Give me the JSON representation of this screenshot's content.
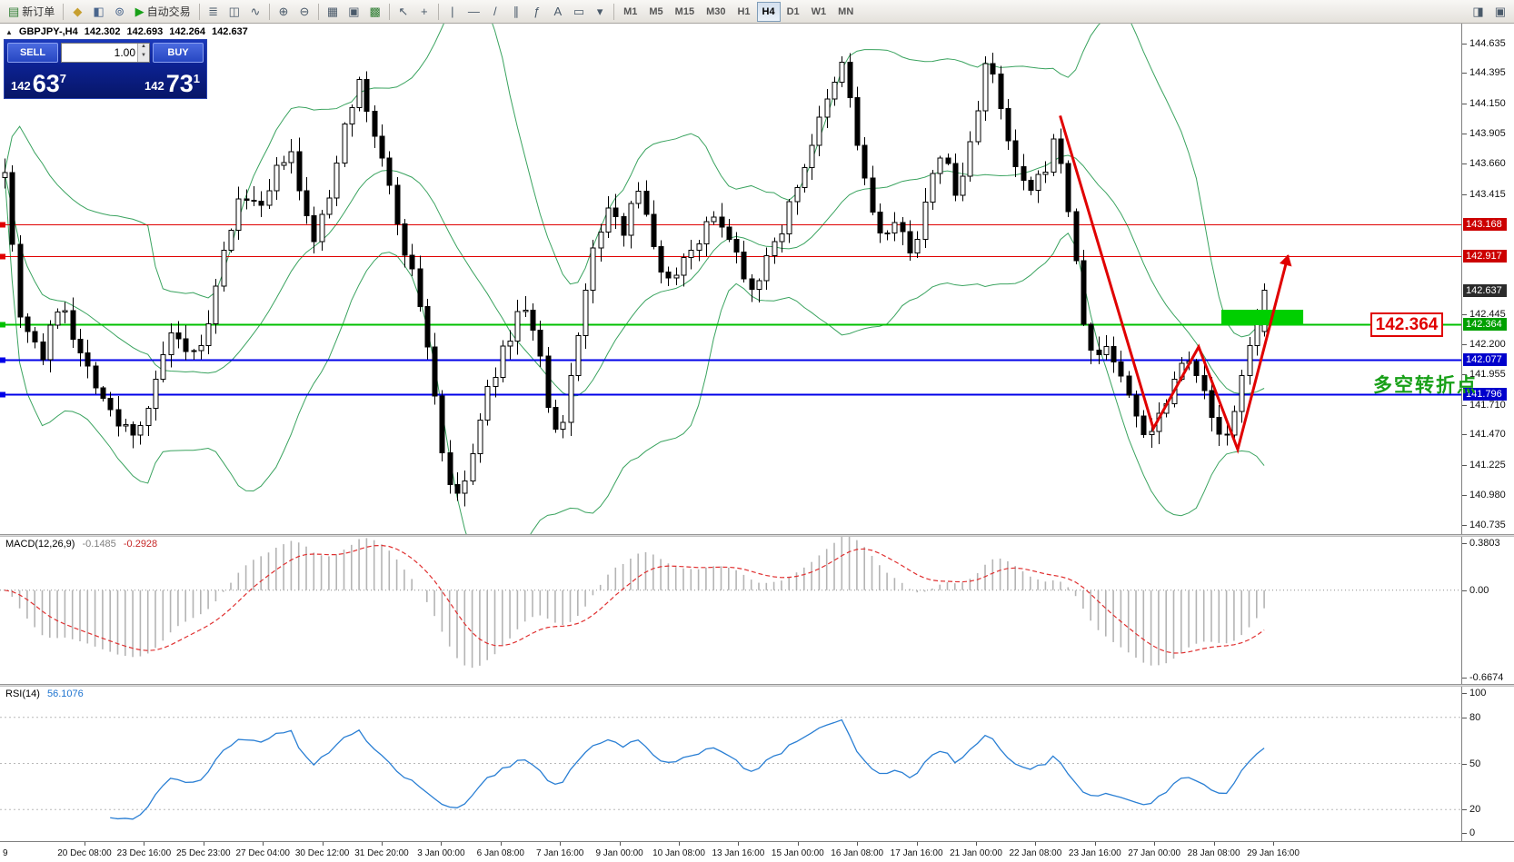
{
  "toolbar": {
    "groups": [
      [
        {
          "name": "new-order",
          "glyph": "▤",
          "glyph_color": "#2e7d32",
          "label": "新订单"
        }
      ],
      [
        {
          "name": "alerts",
          "glyph": "◆",
          "glyph_color": "#c79f2f"
        },
        {
          "name": "depth-of-market",
          "glyph": "◧",
          "glyph_color": "#49658c"
        },
        {
          "name": "news",
          "glyph": "⊚",
          "glyph_color": "#49658c"
        },
        {
          "name": "auto-trading",
          "glyph": "▶",
          "glyph_color": "#18a018",
          "label": "自动交易"
        }
      ],
      [
        {
          "name": "bar-chart",
          "glyph": "≣"
        },
        {
          "name": "candlestick-chart",
          "glyph": "◫"
        },
        {
          "name": "line-chart",
          "glyph": "∿"
        }
      ],
      [
        {
          "name": "zoom-in",
          "glyph": "⊕"
        },
        {
          "name": "zoom-out",
          "glyph": "⊖"
        }
      ],
      [
        {
          "name": "tile-windows",
          "glyph": "▦"
        },
        {
          "name": "arrange-windows",
          "glyph": "▣"
        },
        {
          "name": "indicators",
          "glyph": "▩",
          "glyph_color": "#2e7d32"
        }
      ],
      [
        {
          "name": "cursor",
          "glyph": "↖"
        },
        {
          "name": "crosshair",
          "glyph": "+"
        }
      ],
      [
        {
          "name": "vertical-line",
          "glyph": "|"
        },
        {
          "name": "horizontal-line",
          "glyph": "―"
        },
        {
          "name": "trendline",
          "glyph": "/"
        },
        {
          "name": "equidistant-channel",
          "glyph": "∥"
        },
        {
          "name": "fibonacci",
          "glyph": "ƒ"
        },
        {
          "name": "text",
          "glyph": "A"
        },
        {
          "name": "text-label",
          "glyph": "▭"
        },
        {
          "name": "arrows-dropdown",
          "glyph": "▾"
        }
      ],
      [
        {
          "name": "tf-m1",
          "label": "M1",
          "tf": true
        },
        {
          "name": "tf-m5",
          "label": "M5",
          "tf": true
        },
        {
          "name": "tf-m15",
          "label": "M15",
          "tf": true
        },
        {
          "name": "tf-m30",
          "label": "M30",
          "tf": true
        },
        {
          "name": "tf-h1",
          "label": "H1",
          "tf": true
        },
        {
          "name": "tf-h4",
          "label": "H4",
          "tf": true,
          "active": true
        },
        {
          "name": "tf-d1",
          "label": "D1",
          "tf": true
        },
        {
          "name": "tf-w1",
          "label": "W1",
          "tf": true
        },
        {
          "name": "tf-mn",
          "label": "MN",
          "tf": true
        }
      ]
    ],
    "right_icons": [
      {
        "name": "chart-window",
        "glyph": "◨"
      },
      {
        "name": "full-screen",
        "glyph": "▣"
      }
    ]
  },
  "chart": {
    "header": {
      "collapse_icon": "▲",
      "symbol_tf": "GBPJPY-,H4",
      "open": "142.302",
      "high": "142.693",
      "low": "142.264",
      "close": "142.637"
    },
    "order_panel": {
      "sell_label": "SELL",
      "buy_label": "BUY",
      "volume": "1.00",
      "spinner_up": "▲",
      "spinner_down": "▼",
      "sell_price_main": "142",
      "sell_price_big": "63",
      "sell_price_sup": "7",
      "buy_price_main": "142",
      "buy_price_big": "73",
      "buy_price_sup": "1"
    },
    "annotation": {
      "text": "多空转折点",
      "color": "#18a018"
    },
    "price_box": {
      "text": "142.364",
      "color": "#e00000"
    },
    "y_axis": {
      "ticks": [
        "144.635",
        "144.395",
        "144.150",
        "143.905",
        "143.660",
        "143.415",
        "142.445",
        "142.200",
        "141.955",
        "141.710",
        "141.470",
        "141.225",
        "140.980",
        "140.735"
      ],
      "tags": [
        {
          "value": "143.168",
          "style": "red"
        },
        {
          "value": "142.917",
          "style": "red"
        },
        {
          "value": "142.637",
          "style": "current"
        },
        {
          "value": "142.364",
          "style": "green"
        },
        {
          "value": "142.077",
          "style": "blue"
        },
        {
          "value": "141.796",
          "style": "blue"
        }
      ]
    },
    "x_axis": {
      "labels": [
        "9",
        "20 Dec 08:00",
        "23 Dec 16:00",
        "25 Dec 23:00",
        "27 Dec 04:00",
        "30 Dec 12:00",
        "31 Dec 20:00",
        "3 Jan 00:00",
        "6 Jan 08:00",
        "7 Jan 16:00",
        "9 Jan 00:00",
        "10 Jan 08:00",
        "13 Jan 16:00",
        "15 Jan 00:00",
        "16 Jan 08:00",
        "17 Jan 16:00",
        "21 Jan 00:00",
        "22 Jan 08:00",
        "23 Jan 16:00",
        "27 Jan 00:00",
        "28 Jan 08:00",
        "29 Jan 16:00"
      ]
    }
  },
  "macd_panel": {
    "name": "MACD(12,26,9)",
    "value_main": "-0.1485",
    "value_signal": "-0.2928",
    "axis_labels": [
      "0.3803",
      "0.00",
      "-0.6674"
    ]
  },
  "rsi_panel": {
    "name": "RSI(14)",
    "value": "56.1076",
    "axis_labels": [
      "100",
      "80",
      "50",
      "20",
      "0"
    ]
  },
  "chart_data": {
    "type": "candlestick",
    "symbol": "GBPJPY",
    "timeframe": "H4",
    "current_bar": {
      "open": 142.302,
      "high": 142.693,
      "low": 142.264,
      "close": 142.637
    },
    "price_top": 144.795,
    "price_bottom": 140.665,
    "candle_count": 168,
    "seed": 7,
    "path_anchors": [
      [
        0.0,
        143.65
      ],
      [
        0.005,
        143.1
      ],
      [
        0.012,
        142.45
      ],
      [
        0.03,
        142.1
      ],
      [
        0.045,
        142.6
      ],
      [
        0.058,
        142.15
      ],
      [
        0.072,
        141.9
      ],
      [
        0.088,
        141.55
      ],
      [
        0.105,
        141.5
      ],
      [
        0.118,
        141.8
      ],
      [
        0.131,
        142.3
      ],
      [
        0.146,
        142.05
      ],
      [
        0.161,
        142.3
      ],
      [
        0.176,
        143.05
      ],
      [
        0.19,
        143.45
      ],
      [
        0.203,
        143.25
      ],
      [
        0.216,
        143.6
      ],
      [
        0.226,
        143.8
      ],
      [
        0.236,
        143.3
      ],
      [
        0.246,
        143.05
      ],
      [
        0.258,
        143.4
      ],
      [
        0.27,
        144.05
      ],
      [
        0.281,
        144.3
      ],
      [
        0.292,
        143.95
      ],
      [
        0.303,
        143.55
      ],
      [
        0.315,
        143.05
      ],
      [
        0.327,
        142.65
      ],
      [
        0.338,
        142.05
      ],
      [
        0.349,
        141.2
      ],
      [
        0.36,
        140.92
      ],
      [
        0.371,
        141.3
      ],
      [
        0.384,
        141.85
      ],
      [
        0.398,
        142.2
      ],
      [
        0.412,
        142.55
      ],
      [
        0.424,
        142.15
      ],
      [
        0.433,
        141.55
      ],
      [
        0.441,
        141.4
      ],
      [
        0.453,
        142.2
      ],
      [
        0.466,
        142.9
      ],
      [
        0.478,
        143.3
      ],
      [
        0.49,
        143.1
      ],
      [
        0.501,
        143.55
      ],
      [
        0.513,
        143.05
      ],
      [
        0.526,
        142.7
      ],
      [
        0.539,
        142.9
      ],
      [
        0.553,
        143.1
      ],
      [
        0.566,
        143.25
      ],
      [
        0.579,
        143.0
      ],
      [
        0.591,
        142.65
      ],
      [
        0.604,
        142.85
      ],
      [
        0.617,
        143.15
      ],
      [
        0.631,
        143.55
      ],
      [
        0.645,
        143.95
      ],
      [
        0.657,
        144.25
      ],
      [
        0.666,
        144.5
      ],
      [
        0.676,
        143.85
      ],
      [
        0.685,
        143.4
      ],
      [
        0.696,
        143.05
      ],
      [
        0.709,
        143.15
      ],
      [
        0.721,
        142.95
      ],
      [
        0.733,
        143.4
      ],
      [
        0.744,
        143.8
      ],
      [
        0.756,
        143.35
      ],
      [
        0.769,
        143.95
      ],
      [
        0.78,
        144.55
      ],
      [
        0.791,
        144.05
      ],
      [
        0.801,
        143.65
      ],
      [
        0.812,
        143.4
      ],
      [
        0.823,
        143.55
      ],
      [
        0.835,
        143.9
      ],
      [
        0.845,
        143.25
      ],
      [
        0.855,
        142.45
      ],
      [
        0.864,
        142.05
      ],
      [
        0.874,
        142.2
      ],
      [
        0.884,
        142.0
      ],
      [
        0.895,
        141.7
      ],
      [
        0.907,
        141.45
      ],
      [
        0.917,
        141.65
      ],
      [
        0.929,
        141.95
      ],
      [
        0.939,
        142.15
      ],
      [
        0.949,
        141.9
      ],
      [
        0.959,
        141.55
      ],
      [
        0.971,
        141.42
      ],
      [
        0.98,
        141.8
      ],
      [
        0.99,
        142.35
      ],
      [
        1.0,
        142.62
      ]
    ],
    "hlines": [
      {
        "price": 143.168,
        "color": "#e00000",
        "width": 1
      },
      {
        "price": 142.917,
        "color": "#e00000",
        "width": 1
      },
      {
        "price": 142.364,
        "color": "#00c000",
        "width": 2
      },
      {
        "price": 142.077,
        "color": "#0000e8",
        "width": 2
      },
      {
        "price": 141.796,
        "color": "#0000e8",
        "width": 2
      }
    ],
    "bollinger": {
      "period": 20,
      "deviation": 2,
      "color": "#3aa35f"
    },
    "highlight_rect": {
      "t1": 0.966,
      "t2": 1.031,
      "price_top": 142.48,
      "price_bottom": 142.355,
      "color": "#00cf00"
    },
    "trend_arrow": {
      "color": "#e00000",
      "points": [
        [
          0.838,
          144.05
        ],
        [
          0.912,
          141.52
        ],
        [
          0.948,
          142.18
        ],
        [
          0.979,
          141.35
        ],
        [
          1.019,
          142.92
        ]
      ]
    },
    "macd": {
      "fast": 12,
      "slow": 26,
      "signal": 9,
      "hist_color": "#b4b4b4",
      "signal_color": "#e03030",
      "axis_max": 0.3803,
      "axis_min": -0.6674
    },
    "rsi": {
      "period": 14,
      "color": "#2a7fd4",
      "levels": [
        80,
        50,
        20
      ]
    }
  }
}
